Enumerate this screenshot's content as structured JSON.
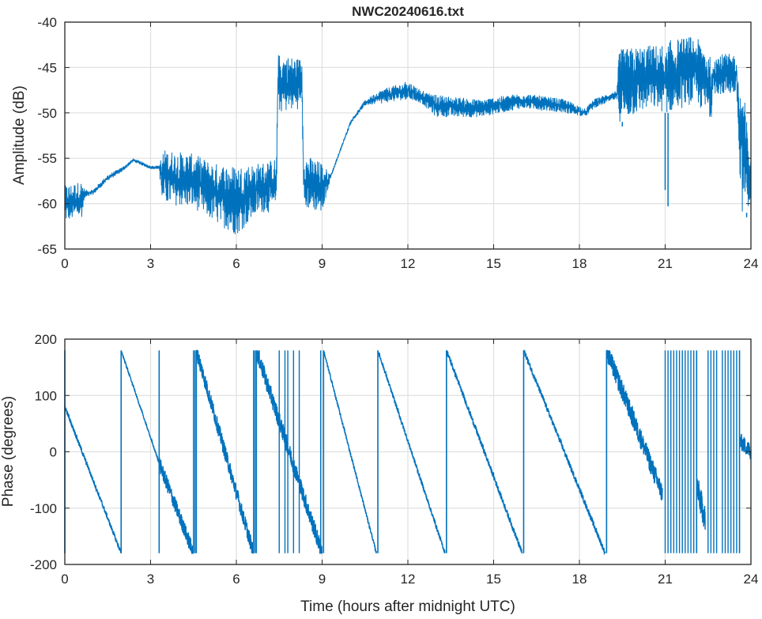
{
  "chart_data": [
    {
      "type": "line",
      "title": "NWC20240616.txt",
      "xlabel": "",
      "ylabel": "Amplitude (dB)",
      "xlim": [
        0,
        24
      ],
      "ylim": [
        -65,
        -40
      ],
      "xticks": [
        0,
        3,
        6,
        9,
        12,
        15,
        18,
        21,
        24
      ],
      "yticks": [
        -40,
        -45,
        -50,
        -55,
        -60,
        -65
      ],
      "grid": true,
      "color": "#0072BD",
      "envelope_columns": [
        "hour",
        "min_dB",
        "max_dB"
      ],
      "envelope": [
        [
          0,
          -62,
          -58
        ],
        [
          0.6,
          -61.5,
          -57.5
        ],
        [
          0.7,
          -59.5,
          -58.5
        ],
        [
          1.0,
          -59,
          -58.4
        ],
        [
          1.5,
          -57.5,
          -56.8
        ],
        [
          2.0,
          -56.5,
          -56
        ],
        [
          2.4,
          -55.4,
          -55
        ],
        [
          3.0,
          -56.2,
          -55.8
        ],
        [
          3.3,
          -56.2,
          -55.8
        ],
        [
          3.4,
          -60,
          -54
        ],
        [
          4.5,
          -60.5,
          -54.5
        ],
        [
          5.2,
          -62,
          -55.5
        ],
        [
          6.0,
          -63.5,
          -55.8
        ],
        [
          6.8,
          -61,
          -55.5
        ],
        [
          7.4,
          -61,
          -55
        ],
        [
          7.45,
          -50,
          -43.5
        ],
        [
          8.3,
          -49.5,
          -44
        ],
        [
          8.35,
          -60.5,
          -54.5
        ],
        [
          9.0,
          -61,
          -55.5
        ],
        [
          9.3,
          -57.2,
          -56.8
        ],
        [
          10.0,
          -51.2,
          -50.8
        ],
        [
          10.5,
          -49.2,
          -48.6
        ],
        [
          11.0,
          -49,
          -47.5
        ],
        [
          12.0,
          -48.5,
          -46.5
        ],
        [
          12.5,
          -49,
          -47.5
        ],
        [
          13.0,
          -50.5,
          -48
        ],
        [
          14.5,
          -50.5,
          -48.5
        ],
        [
          16.0,
          -49.5,
          -47.8
        ],
        [
          17.5,
          -50,
          -48.5
        ],
        [
          18.2,
          -50.5,
          -49.5
        ],
        [
          18.5,
          -49.5,
          -48.5
        ],
        [
          19.3,
          -48.5,
          -47.5
        ],
        [
          19.4,
          -51,
          -43
        ],
        [
          20.5,
          -49.5,
          -42.5
        ],
        [
          21.0,
          -50,
          -42.5
        ],
        [
          21.1,
          -50,
          -42
        ],
        [
          22.0,
          -49,
          -41.5
        ],
        [
          22.4,
          -50,
          -42.5
        ],
        [
          22.6,
          -51,
          -44
        ],
        [
          22.7,
          -48,
          -43.5
        ],
        [
          23.5,
          -48,
          -43.5
        ],
        [
          23.6,
          -56,
          -48
        ],
        [
          23.7,
          -61,
          -46
        ],
        [
          24.0,
          -60,
          -55.5
        ]
      ],
      "spikes": [
        [
          21.0,
          -58.5
        ],
        [
          21.1,
          -60.3
        ],
        [
          19.5,
          -51.5
        ],
        [
          23.85,
          -61.5
        ]
      ]
    },
    {
      "type": "line",
      "title": "",
      "xlabel": "Time (hours after midnight UTC)",
      "ylabel": "Phase (degrees)",
      "xlim": [
        0,
        24
      ],
      "ylim": [
        -200,
        200
      ],
      "xticks": [
        0,
        3,
        6,
        9,
        12,
        15,
        18,
        21,
        24
      ],
      "yticks": [
        200,
        100,
        0,
        -100,
        -200
      ],
      "grid": true,
      "color": "#0072BD",
      "segments_columns": [
        "start_hour",
        "end_hour",
        "start_deg",
        "end_deg",
        "noise_deg"
      ],
      "segments": [
        [
          0,
          1.97,
          80,
          -180,
          4
        ],
        [
          1.97,
          3.3,
          180,
          -20,
          2
        ],
        [
          3.3,
          4.5,
          -20,
          -180,
          14
        ],
        [
          4.6,
          6.6,
          180,
          -180,
          14
        ],
        [
          6.7,
          9.0,
          180,
          -180,
          16
        ],
        [
          9.05,
          10.9,
          180,
          -180,
          3
        ],
        [
          10.95,
          13.3,
          180,
          -180,
          4
        ],
        [
          13.35,
          16.0,
          180,
          -180,
          5
        ],
        [
          16.05,
          18.9,
          180,
          -180,
          5
        ],
        [
          18.95,
          20.9,
          180,
          -75,
          18
        ],
        [
          22.1,
          22.4,
          -60,
          -120,
          25
        ],
        [
          23.6,
          24.0,
          20,
          0,
          15
        ]
      ],
      "wraps": [
        4.5,
        4.55,
        6.6,
        6.65,
        7.5,
        7.7,
        7.8,
        8.0,
        8.2,
        8.95,
        21.0,
        21.1,
        21.2,
        21.3,
        21.4,
        21.5,
        21.6,
        21.7,
        21.8,
        21.9,
        22.0,
        22.5,
        22.6,
        22.7,
        22.8,
        23.0,
        23.1,
        23.2,
        23.3,
        23.4,
        23.5
      ]
    }
  ]
}
